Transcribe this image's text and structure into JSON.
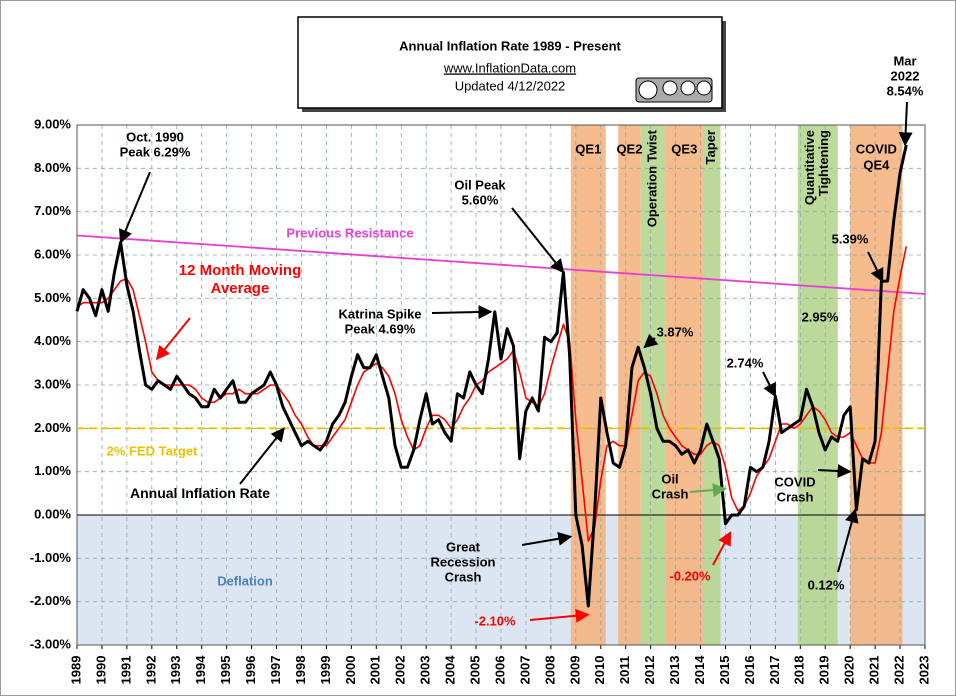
{
  "chart_data": {
    "type": "line",
    "title": "Annual  Inflation Rate 1989 - Present",
    "subtitle": [
      "www.InflationData.com",
      "Updated   4/12/2022"
    ],
    "xlim": [
      1989,
      2023
    ],
    "xticks": [
      1989,
      1990,
      1991,
      1992,
      1993,
      1994,
      1995,
      1996,
      1997,
      1998,
      1999,
      2000,
      2001,
      2002,
      2003,
      2004,
      2005,
      2006,
      2007,
      2008,
      2009,
      2010,
      2011,
      2012,
      2013,
      2014,
      2015,
      2016,
      2017,
      2018,
      2019,
      2020,
      2021,
      2022,
      2023
    ],
    "ylim": [
      -3,
      9
    ],
    "yticks": [
      {
        "value": 9,
        "label": "9.00%"
      },
      {
        "value": 8,
        "label": "8.00%"
      },
      {
        "value": 7,
        "label": "7.00%"
      },
      {
        "value": 6,
        "label": "6.00%"
      },
      {
        "value": 5,
        "label": "5.00%"
      },
      {
        "value": 4,
        "label": "4.00%"
      },
      {
        "value": 3,
        "label": "3.00%"
      },
      {
        "value": 2,
        "label": "2.00%"
      },
      {
        "value": 1,
        "label": "1.00%"
      },
      {
        "value": 0,
        "label": "0.00%"
      },
      {
        "value": -1,
        "label": "-1.00%"
      },
      {
        "value": -2,
        "label": "-2.00%"
      },
      {
        "value": -3,
        "label": "-3.00%"
      }
    ],
    "grid": true,
    "x": [
      1989,
      1989.25,
      1989.5,
      1989.75,
      1990,
      1990.25,
      1990.5,
      1990.75,
      1991,
      1991.25,
      1991.5,
      1991.75,
      1992,
      1992.25,
      1992.5,
      1992.75,
      1993,
      1993.25,
      1993.5,
      1993.75,
      1994,
      1994.25,
      1994.5,
      1994.75,
      1995,
      1995.25,
      1995.5,
      1995.75,
      1996,
      1996.25,
      1996.5,
      1996.75,
      1997,
      1997.25,
      1997.5,
      1997.75,
      1998,
      1998.25,
      1998.5,
      1998.75,
      1999,
      1999.25,
      1999.5,
      1999.75,
      2000,
      2000.25,
      2000.5,
      2000.75,
      2001,
      2001.25,
      2001.5,
      2001.75,
      2002,
      2002.25,
      2002.5,
      2002.75,
      2003,
      2003.25,
      2003.5,
      2003.75,
      2004,
      2004.25,
      2004.5,
      2004.75,
      2005,
      2005.25,
      2005.5,
      2005.75,
      2006,
      2006.25,
      2006.5,
      2006.75,
      2007,
      2007.25,
      2007.5,
      2007.75,
      2008,
      2008.25,
      2008.5,
      2008.75,
      2009,
      2009.25,
      2009.5,
      2009.75,
      2010,
      2010.25,
      2010.5,
      2010.75,
      2011,
      2011.25,
      2011.5,
      2011.75,
      2012,
      2012.25,
      2012.5,
      2012.75,
      2013,
      2013.25,
      2013.5,
      2013.75,
      2014,
      2014.25,
      2014.5,
      2014.75,
      2015,
      2015.25,
      2015.5,
      2015.75,
      2016,
      2016.25,
      2016.5,
      2016.75,
      2017,
      2017.25,
      2017.5,
      2017.75,
      2018,
      2018.25,
      2018.5,
      2018.75,
      2019,
      2019.25,
      2019.5,
      2019.75,
      2020,
      2020.25,
      2020.5,
      2020.75,
      2021,
      2021.25,
      2021.5,
      2021.75,
      2022,
      2022.25
    ],
    "series": [
      {
        "name": "Annual Inflation Rate",
        "color": "#000000",
        "width": 3,
        "label_arrow": {
          "x": 1997.3,
          "y": 2.0
        },
        "values": [
          4.7,
          5.2,
          5.0,
          4.6,
          5.2,
          4.7,
          5.6,
          6.29,
          5.3,
          4.7,
          3.8,
          3.0,
          2.9,
          3.1,
          3.0,
          2.9,
          3.2,
          3.0,
          2.8,
          2.7,
          2.5,
          2.5,
          2.9,
          2.7,
          2.9,
          3.1,
          2.6,
          2.6,
          2.8,
          2.9,
          3.0,
          3.3,
          3.0,
          2.5,
          2.2,
          1.9,
          1.6,
          1.7,
          1.6,
          1.5,
          1.7,
          2.1,
          2.3,
          2.6,
          3.2,
          3.7,
          3.4,
          3.4,
          3.7,
          3.2,
          2.7,
          1.6,
          1.1,
          1.1,
          1.5,
          2.2,
          2.8,
          2.1,
          2.2,
          1.9,
          1.7,
          2.8,
          2.7,
          3.3,
          3.0,
          2.8,
          3.6,
          4.69,
          3.6,
          4.3,
          3.9,
          1.3,
          2.4,
          2.7,
          2.4,
          4.1,
          4.0,
          4.2,
          5.6,
          3.7,
          0.0,
          -0.7,
          -2.1,
          0.0,
          2.7,
          1.9,
          1.2,
          1.1,
          1.6,
          3.4,
          3.87,
          3.4,
          2.8,
          2.0,
          1.7,
          1.7,
          1.6,
          1.4,
          1.5,
          1.2,
          1.5,
          2.1,
          1.7,
          1.3,
          -0.2,
          0.0,
          0.0,
          0.2,
          1.1,
          1.0,
          1.1,
          1.7,
          2.74,
          1.9,
          2.0,
          2.1,
          2.2,
          2.9,
          2.5,
          1.9,
          1.5,
          1.8,
          1.7,
          2.3,
          2.5,
          0.12,
          1.3,
          1.2,
          1.7,
          5.39,
          5.4,
          6.8,
          7.9,
          8.54
        ]
      },
      {
        "name": "12 Month Moving Average",
        "color": "#ff0000",
        "width": 1.6,
        "label_arrow": {
          "x": 1992.2,
          "y": 3.6
        },
        "values": [
          4.8,
          4.9,
          4.9,
          4.9,
          4.9,
          5.0,
          5.2,
          5.4,
          5.45,
          5.2,
          4.6,
          4.0,
          3.3,
          3.1,
          3.0,
          3.0,
          3.0,
          3.0,
          3.0,
          2.9,
          2.7,
          2.6,
          2.6,
          2.7,
          2.8,
          2.8,
          2.9,
          2.8,
          2.8,
          2.8,
          2.9,
          3.0,
          3.0,
          2.8,
          2.6,
          2.3,
          2.1,
          1.8,
          1.6,
          1.6,
          1.6,
          1.8,
          2.0,
          2.2,
          2.6,
          3.0,
          3.3,
          3.4,
          3.5,
          3.4,
          3.2,
          2.8,
          2.2,
          1.8,
          1.5,
          1.6,
          2.0,
          2.3,
          2.3,
          2.2,
          2.0,
          2.2,
          2.5,
          2.7,
          3.0,
          3.1,
          3.3,
          3.4,
          3.5,
          3.6,
          3.8,
          3.3,
          2.7,
          2.6,
          2.5,
          2.8,
          3.4,
          3.9,
          4.4,
          4.0,
          2.2,
          0.8,
          -0.6,
          -0.3,
          0.8,
          1.6,
          1.7,
          1.6,
          1.6,
          2.3,
          3.1,
          3.3,
          3.2,
          2.8,
          2.3,
          2.0,
          1.8,
          1.6,
          1.5,
          1.4,
          1.4,
          1.6,
          1.7,
          1.6,
          1.1,
          0.4,
          0.1,
          0.2,
          0.5,
          0.9,
          1.1,
          1.3,
          1.7,
          2.1,
          2.1,
          2.0,
          2.1,
          2.3,
          2.5,
          2.4,
          2.2,
          1.9,
          1.8,
          1.8,
          1.9,
          1.6,
          1.3,
          1.2,
          1.2,
          1.9,
          3.3,
          4.7,
          5.5,
          6.2
        ]
      }
    ],
    "deflation": {
      "label": "Deflation",
      "below": 0,
      "color": "#dce6f2"
    },
    "reference_lines": [
      {
        "label": "Previous Resistance",
        "color": "#e83ed6",
        "x": [
          1989,
          2023
        ],
        "y": [
          6.45,
          5.1
        ]
      },
      {
        "label": "2% FED Target",
        "color": "#f0c000",
        "x": [
          1989,
          2023
        ],
        "y": [
          2,
          2
        ]
      }
    ],
    "bands": [
      {
        "lines": [
          "QE1"
        ],
        "start": 2008.8,
        "end": 2010.2,
        "color": "#f5b07a",
        "vertical": false
      },
      {
        "lines": [
          "QE2"
        ],
        "start": 2010.7,
        "end": 2011.6,
        "color": "#f5b07a",
        "vertical": false
      },
      {
        "lines": [
          "Operation Twist"
        ],
        "start": 2011.6,
        "end": 2012.6,
        "color": "#b3d38a",
        "vertical": true
      },
      {
        "lines": [
          "QE3"
        ],
        "start": 2012.6,
        "end": 2014.1,
        "color": "#f5b07a",
        "vertical": false
      },
      {
        "lines": [
          "Taper"
        ],
        "start": 2014.1,
        "end": 2014.8,
        "color": "#b3d38a",
        "vertical": true
      },
      {
        "lines": [
          "Quantitative",
          "Tightening"
        ],
        "start": 2017.9,
        "end": 2019.5,
        "color": "#b3d38a",
        "vertical": true
      },
      {
        "lines": [
          "COVID",
          "QE4"
        ],
        "start": 2020.0,
        "end": 2022.1,
        "color": "#f5b07a",
        "vertical": false
      }
    ],
    "annotations": [
      {
        "lines": [
          "Oct. 1990",
          "Peak 6.29%"
        ],
        "color": "#000000",
        "target": {
          "x": 1990.75,
          "y": 6.29
        }
      },
      {
        "lines": [
          "Katrina Spike",
          "Peak 4.69%"
        ],
        "color": "#000000",
        "target": {
          "x": 2005.6,
          "y": 4.69
        }
      },
      {
        "lines": [
          "Oil Peak",
          "5.60%"
        ],
        "color": "#000000",
        "target": {
          "x": 2008.5,
          "y": 5.6
        }
      },
      {
        "lines": [
          "3.87%"
        ],
        "color": "#000000",
        "target": {
          "x": 2011.75,
          "y": 3.87
        }
      },
      {
        "lines": [
          "2.74%"
        ],
        "color": "#000000",
        "target": {
          "x": 2017.0,
          "y": 2.74
        }
      },
      {
        "lines": [
          "2.95%"
        ],
        "color": "#000000"
      },
      {
        "lines": [
          "5.39%"
        ],
        "color": "#000000",
        "target": {
          "x": 2021.3,
          "y": 5.39
        }
      },
      {
        "lines": [
          "Mar",
          "2022",
          "8.54%"
        ],
        "color": "#000000",
        "target": {
          "x": 2022.2,
          "y": 8.54
        }
      },
      {
        "lines": [
          "Oil",
          "Crash"
        ],
        "color": "#000000",
        "arrow_color": "#6aa84f",
        "target": {
          "x": 2015.0,
          "y": 0.6
        }
      },
      {
        "lines": [
          "COVID",
          "Crash"
        ],
        "color": "#000000",
        "target": {
          "x": 2020.0,
          "y": 1.0
        }
      },
      {
        "lines": [
          "Great",
          "Recession",
          "Crash"
        ],
        "color": "#000000",
        "target": {
          "x": 2008.8,
          "y": -0.5
        }
      },
      {
        "lines": [
          "-2.10%"
        ],
        "color": "#ff0000",
        "target": {
          "x": 2009.5,
          "y": -2.3
        }
      },
      {
        "lines": [
          "-0.20%"
        ],
        "color": "#ff0000",
        "target": {
          "x": 2015.2,
          "y": -0.4
        }
      },
      {
        "lines": [
          "0.12%"
        ],
        "color": "#000000",
        "target": {
          "x": 2020.2,
          "y": 0.12
        }
      }
    ]
  }
}
